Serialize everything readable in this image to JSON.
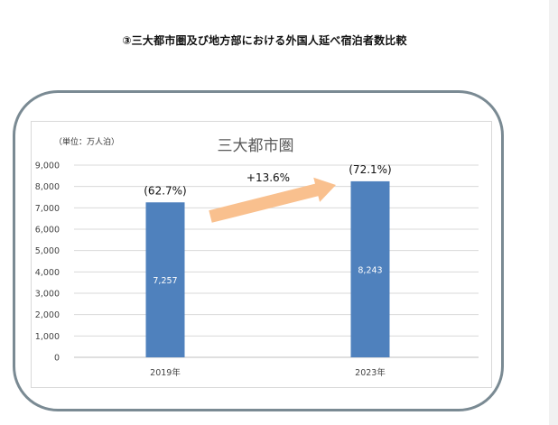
{
  "page_title": "③三大都市圏及び地方部における外国人延べ宿泊者数比較",
  "chart_data": {
    "type": "bar",
    "title": "三大都市圏",
    "unit_label": "（単位：万人泊）",
    "categories": [
      "2019年",
      "2023年"
    ],
    "series": [
      {
        "values": [
          7257,
          8243
        ],
        "value_labels": [
          "7,257",
          "8,243"
        ]
      }
    ],
    "share_labels": [
      "(62.7%)",
      "(72.1%)"
    ],
    "growth_annotation": "+13.6%",
    "ylim": [
      0,
      9000
    ],
    "yticks": [
      0,
      1000,
      2000,
      3000,
      4000,
      5000,
      6000,
      7000,
      8000,
      9000
    ],
    "ytick_labels": [
      "0",
      "1,000",
      "2,000",
      "3,000",
      "4,000",
      "5,000",
      "6,000",
      "7,000",
      "8,000",
      "9,000"
    ],
    "grid": true,
    "bar_color": "#4f81bd",
    "arrow_color": "#f9c08e",
    "gridline_color": "#d9d9d9"
  }
}
